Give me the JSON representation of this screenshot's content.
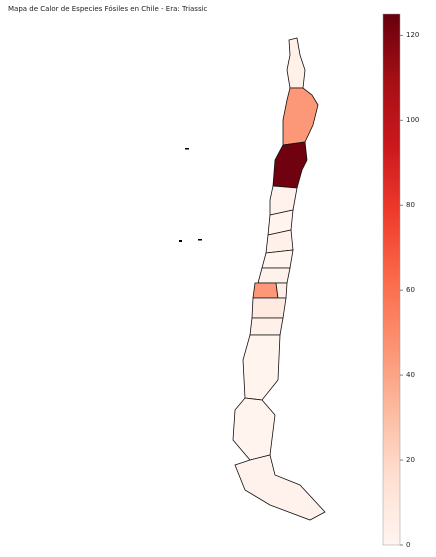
{
  "title": "Mapa de Calor de Especies Fósiles en Chile - Era: Triassic",
  "map": {
    "regions": {
      "values": [
        4,
        45,
        123,
        2,
        1,
        3,
        1,
        2,
        45,
        5,
        8,
        3,
        1,
        1,
        2
      ]
    }
  },
  "colorbar": {
    "lim": [
      0,
      125
    ],
    "ticks": [
      0,
      20,
      40,
      60,
      80,
      100,
      120
    ],
    "colormap": [
      "#fff5f0",
      "#fee0d2",
      "#fcbba1",
      "#fc9272",
      "#fb6a4a",
      "#ef3b2c",
      "#cb181d",
      "#a50f15",
      "#67000d"
    ]
  }
}
